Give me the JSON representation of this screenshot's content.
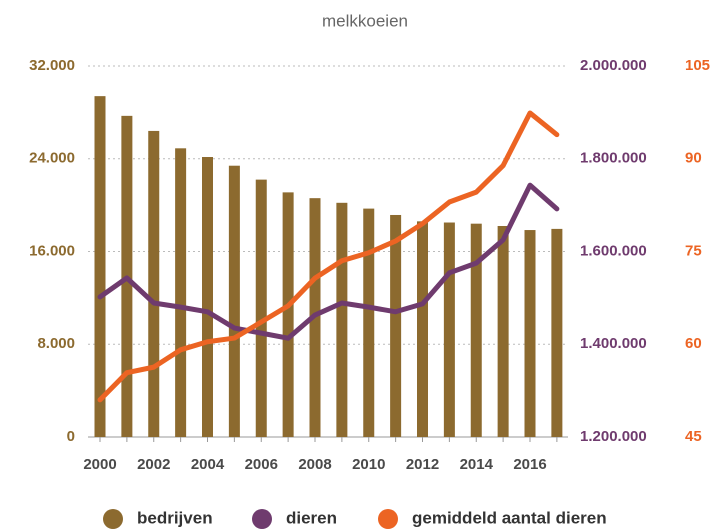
{
  "chart_data": {
    "type": "bar-line",
    "title": "melkkoeien",
    "categories": [
      "2000",
      null,
      "2002",
      null,
      "2004",
      null,
      "2006",
      null,
      "2008",
      null,
      "2010",
      null,
      "2012",
      null,
      "2014",
      null,
      "2016",
      null
    ],
    "series": [
      {
        "name": "bedrijven",
        "type": "bar",
        "axis": "y",
        "color": "#8c6a2f",
        "values": [
          29400,
          27700,
          26400,
          24900,
          24150,
          23400,
          22200,
          21100,
          20600,
          20200,
          19700,
          19150,
          18600,
          18500,
          18400,
          18200,
          17850,
          17950
        ]
      },
      {
        "name": "dieren",
        "type": "line",
        "axis": "y2",
        "color": "#6f3b6e",
        "values": [
          1502000,
          1543000,
          1489000,
          1480000,
          1470000,
          1435000,
          1424000,
          1413000,
          1463000,
          1489000,
          1480000,
          1470000,
          1487000,
          1554000,
          1575000,
          1625000,
          1743000,
          1692000
        ]
      },
      {
        "name": "gemiddeld aantal dieren",
        "type": "line",
        "axis": "y3",
        "color": "#ec6423",
        "values": [
          51,
          55.4,
          56.3,
          59.1,
          60.4,
          61,
          63.6,
          66.2,
          70.7,
          73.5,
          74.8,
          76.7,
          79.5,
          83,
          84.6,
          88.9,
          97.4,
          93.9
        ]
      }
    ],
    "ylim": [
      0,
      32000
    ],
    "yticks": [
      0,
      {
        "value": 8000,
        "label": "8.000"
      },
      {
        "value": 16000,
        "label": "16.000"
      },
      {
        "value": 24000,
        "label": "24.000"
      },
      {
        "value": 32000,
        "label": "32.000"
      }
    ],
    "y2lim": [
      1200000,
      2000000
    ],
    "y2ticks": [
      {
        "value": 1200000,
        "label": "1.200.000"
      },
      {
        "value": 1400000,
        "label": "1.400.000"
      },
      {
        "value": 1600000,
        "label": "1.600.000"
      },
      {
        "value": 1800000,
        "label": "1.800.000"
      },
      {
        "value": 2000000,
        "label": "2.000.000"
      }
    ],
    "y3lim": [
      45,
      105
    ],
    "y3ticks": [
      45,
      60,
      75,
      90,
      105
    ],
    "grid": true
  }
}
